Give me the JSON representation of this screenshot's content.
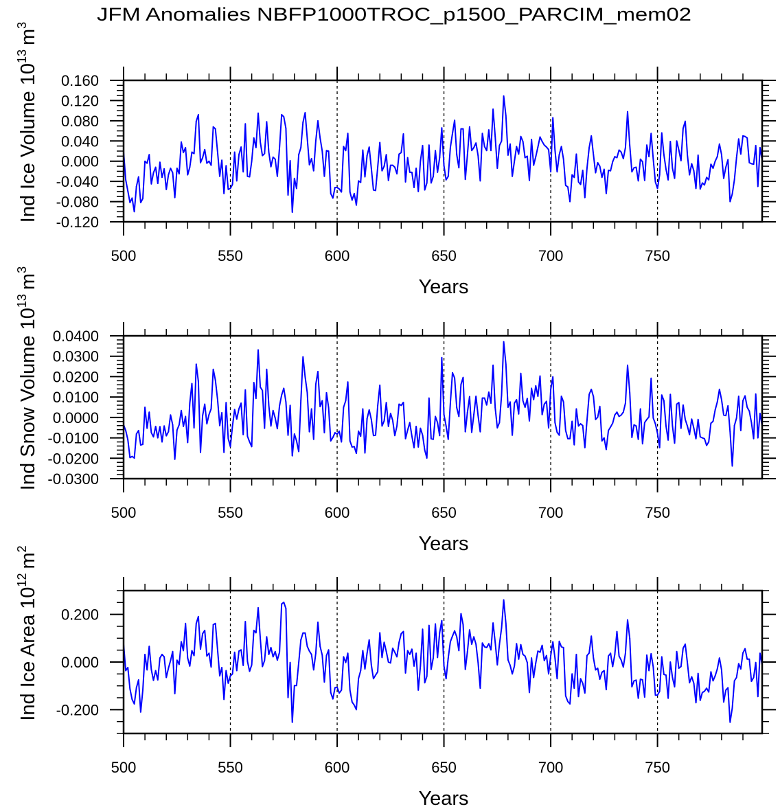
{
  "title": "JFM Anomalies NBFP1000TROC_p1500_PARCIM_mem02",
  "line_color": "#0000ff",
  "chart_data": [
    {
      "type": "line",
      "xlabel": "Years",
      "ylabel": {
        "text": "Ind Ice Volume 10",
        "exponent": "13",
        "unit": "m",
        "unit_power": "3"
      },
      "xlim": [
        500,
        799
      ],
      "ylim": [
        -0.12,
        0.16
      ],
      "xticks": [
        "500",
        "550",
        "600",
        "650",
        "700",
        "750"
      ],
      "yticks": [
        "-0.120",
        "-0.080",
        "-0.040",
        "0.000",
        "0.040",
        "0.080",
        "0.120",
        "0.160"
      ],
      "ytick_values": [
        -0.12,
        -0.08,
        -0.04,
        0,
        0.04,
        0.08,
        0.12,
        0.16
      ],
      "yminor_step": 0.01,
      "reference_lines_x": [
        550,
        600,
        650,
        700,
        750
      ],
      "x_start": 500,
      "values": [
        0.018,
        -0.037,
        -0.059,
        -0.082,
        -0.073,
        -0.1,
        -0.05,
        -0.031,
        -0.082,
        -0.074,
        0.0,
        -0.004,
        0.013,
        -0.045,
        -0.023,
        -0.012,
        -0.044,
        -0.002,
        -0.032,
        -0.015,
        -0.056,
        -0.027,
        -0.014,
        -0.023,
        -0.072,
        -0.014,
        -0.025,
        0.038,
        0.017,
        0.027,
        -0.027,
        -0.012,
        0.018,
        0.015,
        0.079,
        0.092,
        -0.003,
        0.007,
        0.023,
        -0.004,
        0.0,
        -0.008,
        0.068,
        0.064,
        0.018,
        -0.03,
        0.002,
        -0.064,
        -0.009,
        -0.056,
        -0.054,
        -0.046,
        0.018,
        -0.039,
        0.013,
        0.028,
        -0.021,
        0.074,
        -0.03,
        -0.031,
        0.0,
        0.046,
        0.027,
        0.095,
        0.038,
        0.011,
        0.015,
        0.078,
        0.018,
        -0.011,
        0.008,
        0.004,
        -0.03,
        0.027,
        0.092,
        0.088,
        0.065,
        -0.067,
        0.001,
        -0.101,
        -0.034,
        -0.054,
        0.013,
        0.027,
        0.077,
        0.096,
        0.045,
        -0.007,
        0.005,
        -0.019,
        0.04,
        0.08,
        0.046,
        0.02,
        -0.03,
        0.021,
        0.02,
        -0.064,
        -0.073,
        -0.052,
        -0.052,
        -0.055,
        -0.061,
        0.029,
        0.021,
        0.055,
        -0.061,
        -0.077,
        -0.064,
        -0.087,
        -0.039,
        -0.042,
        0.022,
        -0.031,
        0.011,
        0.028,
        -0.014,
        -0.057,
        -0.058,
        -0.012,
        0.037,
        -0.019,
        -0.01,
        0.013,
        -0.038,
        -0.008,
        -0.008,
        -0.012,
        -0.025,
        0.014,
        0.017,
        0.054,
        -0.041,
        0.007,
        -0.022,
        -0.022,
        -0.052,
        -0.014,
        -0.06,
        0.0,
        0.031,
        -0.057,
        -0.043,
        0.032,
        -0.043,
        -0.03,
        0.021,
        -0.022,
        0.007,
        0.066,
        -0.009,
        -0.037,
        -0.03,
        0.027,
        0.055,
        0.081,
        0.013,
        -0.013,
        0.064,
        0.064,
        -0.036,
        0.013,
        0.068,
        0.021,
        0.027,
        0.036,
        0.011,
        -0.039,
        0.055,
        0.029,
        0.021,
        0.062,
        0.021,
        0.103,
        0.049,
        -0.014,
        0.031,
        0.04,
        0.129,
        0.09,
        0.012,
        0.034,
        -0.03,
        0.0,
        0.029,
        0.014,
        0.049,
        0.039,
        0.007,
        0.01,
        -0.038,
        0.043,
        -0.008,
        0.009,
        0.028,
        0.048,
        0.039,
        0.032,
        0.028,
        0.023,
        -0.021,
        0.086,
        0.022,
        -0.021,
        0.013,
        0.029,
        0.004,
        -0.048,
        -0.051,
        -0.08,
        -0.027,
        -0.032,
        0.014,
        -0.041,
        -0.046,
        -0.018,
        -0.072,
        -0.014,
        0.027,
        0.05,
        0.013,
        -0.023,
        -0.003,
        -0.01,
        -0.032,
        -0.016,
        -0.064,
        -0.018,
        -0.019,
        -0.001,
        0.009,
        0.007,
        0.022,
        0.018,
        0.005,
        0.027,
        0.098,
        0.031,
        -0.021,
        -0.013,
        -0.012,
        -0.039,
        0.004,
        -0.001,
        -0.038,
        0.032,
        0.009,
        0.055,
        0.004,
        -0.041,
        -0.054,
        -0.027,
        0.056,
        0.013,
        -0.016,
        -0.037,
        0.039,
        -0.014,
        -0.034,
        0.04,
        0.022,
        0.001,
        0.065,
        0.079,
        0.013,
        -0.027,
        -0.005,
        -0.019,
        -0.054,
        0.012,
        -0.055,
        -0.043,
        -0.047,
        -0.032,
        -0.037,
        -0.006,
        -0.014,
        0.0,
        0.009,
        0.034,
        0.013,
        -0.034,
        -0.012,
        0.003,
        -0.08,
        -0.065,
        -0.037,
        0.007,
        0.044,
        0.014,
        0.05,
        0.049,
        0.046,
        -0.003,
        -0.005,
        -0.006,
        0.031,
        -0.05,
        0.027,
        0.002
      ]
    },
    {
      "type": "line",
      "xlabel": "Years",
      "ylabel": {
        "text": "Ind Snow Volume 10",
        "exponent": "13",
        "unit": "m",
        "unit_power": "3"
      },
      "xlim": [
        500,
        799
      ],
      "ylim": [
        -0.03,
        0.04
      ],
      "xticks": [
        "500",
        "550",
        "600",
        "650",
        "700",
        "750"
      ],
      "yticks": [
        "-0.0300",
        "-0.0200",
        "-0.0100",
        "0.0000",
        "0.0100",
        "0.0200",
        "0.0300",
        "0.0400"
      ],
      "ytick_values": [
        -0.03,
        -0.02,
        -0.01,
        0,
        0.01,
        0.02,
        0.03,
        0.04
      ],
      "yminor_step": 0.002,
      "reference_lines_x": [
        550,
        600,
        650,
        700,
        750
      ],
      "x_start": 500,
      "values": [
        -0.0036,
        -0.0064,
        -0.0109,
        -0.0197,
        -0.0191,
        -0.0199,
        -0.0081,
        -0.0064,
        -0.0135,
        -0.0132,
        0.005,
        -0.0053,
        0.0026,
        -0.0075,
        -0.0095,
        -0.0044,
        -0.01,
        -0.0045,
        -0.012,
        -0.0042,
        -0.009,
        -0.007,
        0.0012,
        -0.0036,
        -0.0205,
        -0.0062,
        -0.0036,
        0.0034,
        -0.0044,
        0.0005,
        -0.0123,
        0.007,
        0.0166,
        -0.0051,
        0.0261,
        0.0177,
        -0.0171,
        0.0009,
        0.0065,
        -0.0031,
        0.0014,
        0.0042,
        0.0236,
        0.0183,
        0.0087,
        -0.004,
        0.0023,
        -0.0171,
        0.0073,
        -0.0104,
        -0.0143,
        -0.0042,
        0.0039,
        -0.0008,
        0.0042,
        0.007,
        -0.0084,
        0.0135,
        -0.0092,
        -0.012,
        -0.0143,
        0.0171,
        0.0093,
        0.0331,
        0.0149,
        0.0132,
        -0.0053,
        0.0236,
        0.0059,
        -0.0042,
        0.0034,
        -0.0003,
        -0.0055,
        0.0057,
        0.011,
        0.0143,
        0.0076,
        -0.0087,
        0.0059,
        -0.0188,
        -0.0081,
        -0.0115,
        -0.0167,
        0.0082,
        0.0297,
        0.0199,
        0.0121,
        -0.007,
        0.0042,
        -0.0107,
        0.0162,
        0.0225,
        0.0053,
        0.0082,
        -0.0075,
        0.0121,
        0.0048,
        -0.0115,
        -0.0098,
        -0.0075,
        -0.0082,
        -0.0067,
        -0.012,
        0.005,
        0.0082,
        0.0174,
        -0.0115,
        -0.0145,
        -0.0143,
        -0.0176,
        -0.0067,
        -0.0092,
        0.0042,
        -0.0174,
        -0.0006,
        0.0037,
        -0.001,
        -0.0089,
        -0.0087,
        0.0057,
        0.0158,
        -0.0042,
        -0.0017,
        0.0073,
        -0.0044,
        0.002,
        -0.0014,
        -0.0089,
        -0.0042,
        0.0065,
        0.0059,
        0.0074,
        -0.0104,
        -0.0062,
        -0.0025,
        -0.0092,
        -0.0148,
        -0.0044,
        -0.0145,
        -0.0053,
        -0.0087,
        -0.016,
        -0.0199,
        0.0095,
        -0.0104,
        -0.0107,
        0.0005,
        -0.0025,
        -0.0089,
        0.0293,
        0.0014,
        -0.0042,
        -0.0107,
        0.007,
        0.0219,
        0.0194,
        0.0048,
        0.0005,
        0.0162,
        0.0196,
        -0.007,
        0.0026,
        0.0102,
        -0.0073,
        0.0014,
        0.0104,
        0.0009,
        -0.007,
        0.0095,
        0.0095,
        0.0061,
        0.0124,
        0.007,
        0.0256,
        0.0048,
        -0.0051,
        -0.0025,
        0.011,
        0.0371,
        0.0261,
        0.005,
        0.0076,
        -0.0087,
        0.007,
        0.0087,
        0.0017,
        0.0216,
        0.0082,
        0.005,
        0.0093,
        -0.0017,
        0.0143,
        0.0087,
        0.0155,
        0.0104,
        0.0203,
        0.0014,
        0.0065,
        0.0079,
        -0.0051,
        0.0138,
        0.0199,
        -0.0025,
        -0.0073,
        -0.0087,
        0.0104,
        0.0076,
        -0.0064,
        -0.0104,
        -0.0104,
        -0.0019,
        -0.0134,
        0.0042,
        -0.0042,
        -0.0031,
        -0.004,
        -0.0148,
        -0.0014,
        0.0113,
        0.0138,
        0.0102,
        -0.001,
        0.0001,
        0.0054,
        -0.0115,
        -0.01,
        -0.0157,
        -0.0064,
        -0.0047,
        -0.0028,
        0.0012,
        0.0026,
        0.0005,
        0.0012,
        0.0026,
        0.007,
        0.0256,
        0.0121,
        -0.0098,
        -0.0036,
        -0.0042,
        -0.0107,
        0.0042,
        -0.0129,
        -0.0025,
        -0.001,
        0.0003,
        0.0192,
        -0.0003,
        -0.0031,
        -0.0078,
        -0.0148,
        0.011,
        0.0082,
        -0.0042,
        -0.0111,
        0.0113,
        -0.0042,
        -0.0126,
        0.0065,
        0.0073,
        -0.0053,
        0.0061,
        -0.001,
        -0.0042,
        -0.0084,
        -0.0008,
        -0.0053,
        -0.0104,
        -0.001,
        -0.0095,
        -0.01,
        -0.0104,
        -0.0137,
        -0.012,
        -0.0028,
        -0.0019,
        0.0037,
        0.0076,
        0.0138,
        0.0087,
        0.0012,
        0.0009,
        0.0057,
        -0.007,
        -0.0238,
        -0.004,
        -0.0003,
        0.0104,
        -0.0064,
        0.0082,
        0.0106,
        0.005,
        0.0031,
        -0.0025,
        -0.0104,
        0.0115,
        -0.01,
        0.002,
        -0.0042
      ]
    },
    {
      "type": "line",
      "xlabel": "Years",
      "ylabel": {
        "text": "Ind Ice Area 10",
        "exponent": "12",
        "unit": "m",
        "unit_power": "2"
      },
      "xlim": [
        500,
        799
      ],
      "ylim": [
        -0.3,
        0.3
      ],
      "xticks": [
        "500",
        "550",
        "600",
        "650",
        "700",
        "750"
      ],
      "yticks": [
        "-0.200",
        "0.000",
        "0.200"
      ],
      "ytick_values": [
        -0.2,
        0,
        0.2
      ],
      "yminor_step": 0.05,
      "reference_lines_x": [
        550,
        600,
        650,
        700,
        750
      ],
      "x_start": 500,
      "values": [
        0.075,
        -0.036,
        -0.023,
        -0.113,
        -0.157,
        -0.176,
        -0.108,
        -0.075,
        -0.21,
        -0.118,
        0.032,
        -0.033,
        0.066,
        -0.032,
        -0.077,
        -0.036,
        -0.075,
        0.017,
        0.032,
        0.022,
        -0.065,
        -0.026,
        0.006,
        0.044,
        -0.133,
        0.008,
        -0.01,
        0.085,
        0.048,
        0.162,
        0.017,
        -0.017,
        0.048,
        0.027,
        0.162,
        0.191,
        0.054,
        0.119,
        0.133,
        0.025,
        0.037,
        -0.021,
        0.157,
        0.162,
        0.051,
        -0.058,
        -0.023,
        -0.157,
        -0.036,
        -0.089,
        -0.058,
        -0.05,
        0.041,
        -0.036,
        0.046,
        0.051,
        -0.014,
        0.17,
        0.003,
        -0.039,
        -0.012,
        0.133,
        0.123,
        0.228,
        0.099,
        -0.019,
        0.006,
        0.106,
        0.032,
        0.061,
        0.022,
        0.044,
        0.008,
        0.041,
        0.244,
        0.251,
        0.225,
        -0.149,
        -0.002,
        -0.253,
        -0.099,
        -0.099,
        -0.002,
        0.093,
        0.122,
        0.122,
        0.066,
        0.046,
        0.032,
        -0.033,
        0.037,
        0.167,
        0.066,
        0.029,
        -0.084,
        0.027,
        0.051,
        -0.128,
        -0.155,
        -0.108,
        -0.106,
        -0.13,
        -0.118,
        0.022,
        -0.002,
        0.037,
        -0.118,
        -0.168,
        -0.181,
        -0.2,
        -0.07,
        -0.036,
        0.048,
        -0.029,
        0.037,
        0.093,
        -0.012,
        -0.07,
        -0.055,
        -0.041,
        0.123,
        0.019,
        0.083,
        0.044,
        0.0,
        -0.004,
        0.058,
        0.041,
        0.022,
        0.083,
        0.119,
        0.128,
        -0.046,
        0.048,
        0.032,
        0.054,
        -0.017,
        0.037,
        -0.118,
        -0.017,
        0.138,
        -0.087,
        -0.06,
        0.154,
        -0.031,
        0.017,
        0.16,
        0.019,
        0.123,
        0.174,
        -0.017,
        -0.07,
        0.017,
        0.085,
        0.109,
        0.131,
        0.106,
        0.048,
        0.203,
        0.157,
        -0.031,
        0.044,
        0.135,
        0.075,
        0.106,
        0.075,
        -0.002,
        -0.11,
        0.08,
        0.064,
        0.061,
        0.077,
        0.051,
        0.164,
        0.083,
        -0.012,
        0.075,
        0.143,
        0.261,
        0.162,
        0.009,
        -0.014,
        -0.05,
        -0.017,
        0.077,
        0.012,
        0.073,
        0.032,
        0.025,
        -0.002,
        -0.128,
        0.017,
        -0.065,
        -0.004,
        0.046,
        0.041,
        0.07,
        0.006,
        0.027,
        -0.05,
        0.027,
        0.085,
        0.017,
        -0.07,
        0.087,
        0.064,
        0.061,
        -0.142,
        -0.166,
        -0.176,
        -0.05,
        -0.11,
        0.032,
        -0.145,
        -0.07,
        -0.089,
        -0.13,
        0.027,
        0.038,
        0.109,
        0.017,
        -0.033,
        -0.026,
        -0.072,
        -0.043,
        -0.036,
        -0.116,
        0.025,
        0.037,
        -0.019,
        0.032,
        0.128,
        0.025,
        0.008,
        -0.021,
        0.037,
        0.177,
        0.099,
        -0.104,
        -0.079,
        -0.076,
        -0.152,
        -0.072,
        -0.075,
        -0.147,
        0.029,
        -0.036,
        0.035,
        -0.021,
        -0.139,
        -0.139,
        -0.123,
        0.022,
        -0.052,
        -0.055,
        -0.152,
        0.0,
        -0.065,
        -0.104,
        0.044,
        -0.026,
        -0.019,
        0.058,
        0.075,
        -0.002,
        -0.087,
        -0.062,
        -0.089,
        -0.171,
        -0.048,
        -0.161,
        -0.128,
        -0.123,
        -0.11,
        -0.126,
        -0.041,
        -0.079,
        -0.058,
        -0.029,
        0.017,
        -0.033,
        -0.168,
        -0.118,
        -0.108,
        -0.253,
        -0.193,
        -0.079,
        -0.065,
        -0.007,
        -0.029,
        0.038,
        0.056,
        0.012,
        0.012,
        -0.081,
        -0.065,
        -0.002,
        -0.145,
        0.037,
        -0.012
      ]
    }
  ]
}
